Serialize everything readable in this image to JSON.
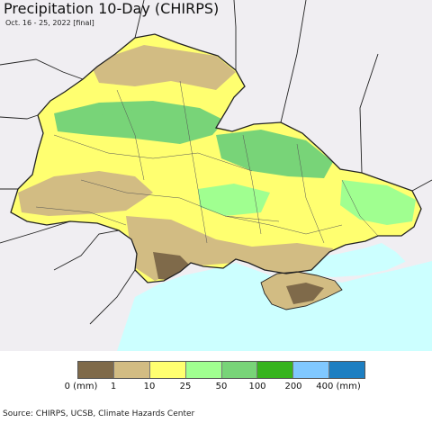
{
  "header": {
    "title": "Precipitation 10-Day (CHIRPS)",
    "subtitle": "Oct. 16 - 25, 2022 [final]"
  },
  "map": {
    "sea_color": "#ccffff",
    "outside_color": "#f0eef2",
    "border_color": "#222222"
  },
  "legend": {
    "colors": [
      "#7f6a4a",
      "#d2bc83",
      "#ffff70",
      "#a0ff90",
      "#78d478",
      "#37b41e",
      "#80c8ff",
      "#1d7fc2"
    ],
    "labels": [
      "0 (mm)",
      "1",
      "10",
      "25",
      "50",
      "100",
      "200",
      "400 (mm)"
    ]
  },
  "footer": {
    "source": "Source: CHIRPS, UCSB, Climate Hazards Center"
  }
}
